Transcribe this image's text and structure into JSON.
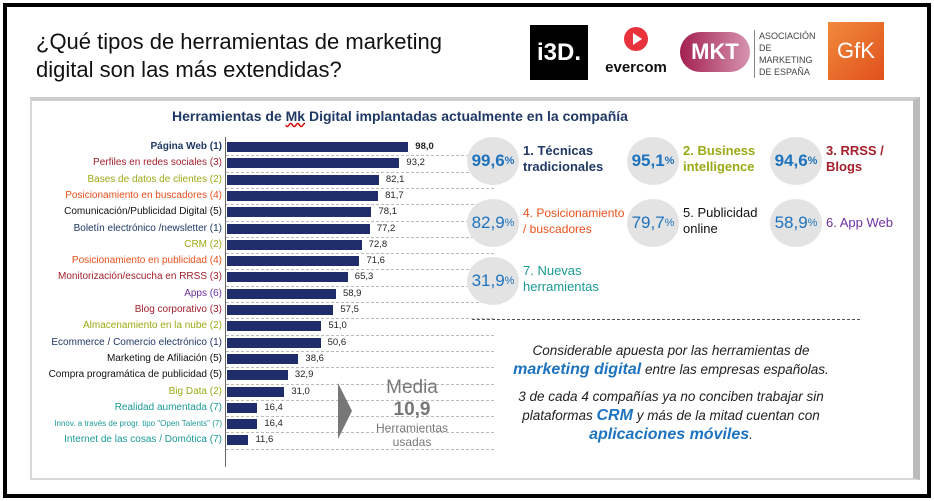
{
  "header": {
    "title_line1": "¿Qué tipos de herramientas de marketing",
    "title_line2": "digital son las más extendidas?"
  },
  "logos": {
    "i3d": "i3D.",
    "evercom": "evercom",
    "mkt": "MKT",
    "asociacion": [
      "ASOCIACIÓN",
      "DE MARKETING",
      "DE ESPAÑA"
    ],
    "gfk": "GfK"
  },
  "panel": {
    "title_a": "Herramientas",
    "title_b": " de ",
    "title_mk": "Mk",
    "title_c": " Digital implantadas actualmente en la compañía"
  },
  "chart_data": {
    "type": "bar",
    "orientation": "horizontal",
    "title": "Herramientas de Mk Digital implantadas actualmente en la compañía",
    "categories": [
      "Página Web (1)",
      "Perfiles en redes sociales (3)",
      "Bases de datos de clientes (2)",
      "Posicionamiento en buscadores (4)",
      "Comunicación/Publicidad Digital (5)",
      "Boletín electrónico /newsletter (1)",
      "CRM (2)",
      "Posicionamiento en publicidad (4)",
      "Monitorización/escucha en RRSS (3)",
      "Apps (6)",
      "Blog corporativo (3)",
      "Almacenamiento en la nube (2)",
      "Ecommerce / Comercio electrónico (1)",
      "Marketing de Afiliación (5)",
      "Compra programática de publicidad (5)",
      "Big Data (2)",
      "Realidad aumentada (7)",
      "Innov. a través de progr. tipo \"Open Talents\" (7)",
      "Internet de las cosas / Domótica (7)"
    ],
    "value_labels": [
      "98,0",
      "93,2",
      "82,1",
      "81,7",
      "78,1",
      "77,2",
      "72,8",
      "71,6",
      "65,3",
      "58,9",
      "57,5",
      "51,0",
      "50,6",
      "38,6",
      "32,9",
      "31,0",
      "16,4",
      "16,4",
      "11,6"
    ],
    "values": [
      98.0,
      93.2,
      82.1,
      81.7,
      78.1,
      77.2,
      72.8,
      71.6,
      65.3,
      58.9,
      57.5,
      51.0,
      50.6,
      38.6,
      32.9,
      31.0,
      16.4,
      16.4,
      11.6
    ],
    "groups": [
      1,
      3,
      2,
      4,
      5,
      1,
      2,
      4,
      3,
      6,
      3,
      2,
      1,
      5,
      5,
      2,
      7,
      7,
      7
    ],
    "xlim": [
      0,
      100
    ]
  },
  "group_colors": {
    "1": "#1f3864",
    "2": "#9aab15",
    "3": "#a3202c",
    "4": "#e8501c",
    "5": "#111111",
    "6": "#7030a0",
    "7": "#1a9a95"
  },
  "media": {
    "label": "Media",
    "value": "10,9",
    "unit1": "Herramientas",
    "unit2": "usadas"
  },
  "categories_summary": [
    {
      "pct": "99,6",
      "sym": "%",
      "label1": "1. Técnicas",
      "label2": "tradicionales",
      "color": "#1f3864",
      "bold": true
    },
    {
      "pct": "95,1",
      "sym": "%",
      "label1": "2. Business",
      "label2": "intelligence",
      "color": "#9aab15",
      "bold": true
    },
    {
      "pct": "94,6",
      "sym": "%",
      "label1": "3. RRSS /",
      "label2": "Blogs",
      "color": "#a3202c",
      "bold": true
    },
    {
      "pct": "82,9",
      "sym": "%",
      "label1": "4. Posicionamiento",
      "label2": "/ buscadores",
      "color": "#e8501c",
      "bold": false
    },
    {
      "pct": "79,7",
      "sym": "%",
      "label1": "5. Publicidad",
      "label2": "online",
      "color": "#111111",
      "bold": false
    },
    {
      "pct": "58,9",
      "sym": "%",
      "label1": "6. App Web",
      "label2": "",
      "color": "#7030a0",
      "bold": false
    },
    {
      "pct": "31,9",
      "sym": "%",
      "label1": "7. Nuevas",
      "label2": "herramientas",
      "color": "#1a9a95",
      "bold": false
    }
  ],
  "message": {
    "p1a": "Considerable apuesta por las herramientas de",
    "p1b": "marketing digital",
    "p1c": " entre las empresas españolas.",
    "p2a": "3 de cada 4 compañías ya no conciben trabajar sin",
    "p2b": "plataformas ",
    "p2c": "CRM",
    "p2d": " y más de la mitad cuentan con",
    "p2e": "aplicaciones móviles",
    "p2f": "."
  }
}
